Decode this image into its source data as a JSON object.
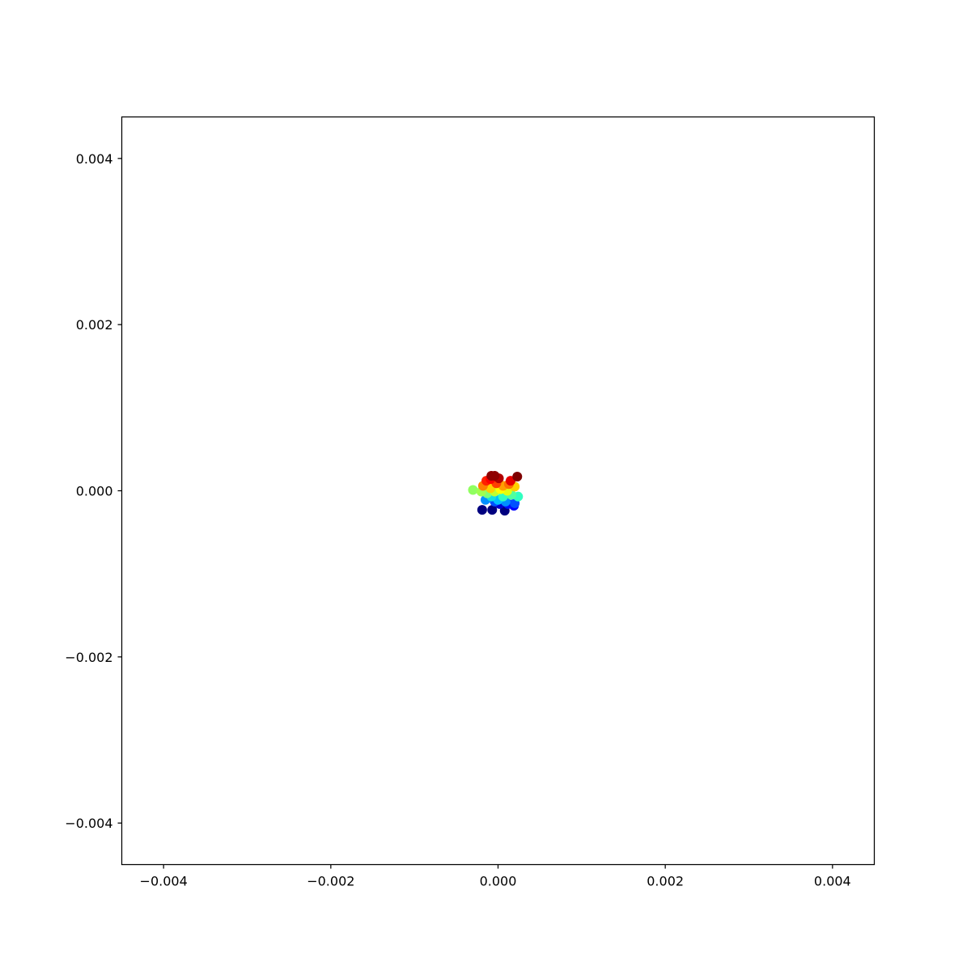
{
  "chart_data": {
    "type": "scatter",
    "title": "",
    "xlabel": "",
    "ylabel": "",
    "xlim": [
      -0.0045,
      0.0045
    ],
    "ylim": [
      -0.0045,
      0.0045
    ],
    "grid": false,
    "legend": "none",
    "colormap": "jet",
    "x_ticks": [
      {
        "value": -0.004,
        "label": "−0.004"
      },
      {
        "value": -0.002,
        "label": "−0.002"
      },
      {
        "value": 0.0,
        "label": "0.000"
      },
      {
        "value": 0.002,
        "label": "0.002"
      },
      {
        "value": 0.004,
        "label": "0.004"
      }
    ],
    "y_ticks": [
      {
        "value": 0.004,
        "label": "0.004"
      },
      {
        "value": 0.002,
        "label": "0.002"
      },
      {
        "value": 0.0,
        "label": "0.000"
      },
      {
        "value": -0.002,
        "label": "−0.002"
      },
      {
        "value": -0.004,
        "label": "−0.004"
      }
    ],
    "points": [
      {
        "x": -0.00019,
        "y": -0.00023,
        "color": "#00007f"
      },
      {
        "x": -7e-05,
        "y": -0.00023,
        "color": "#00007f"
      },
      {
        "x": 8e-05,
        "y": -0.00024,
        "color": "#00007f"
      },
      {
        "x": 2e-05,
        "y": -0.00016,
        "color": "#0000d0"
      },
      {
        "x": 0.00019,
        "y": -0.00018,
        "color": "#0000ff"
      },
      {
        "x": 0.00012,
        "y": -0.00016,
        "color": "#0010ff"
      },
      {
        "x": -4e-05,
        "y": -0.00013,
        "color": "#0050ff"
      },
      {
        "x": 0.0002,
        "y": -0.00015,
        "color": "#0050ff"
      },
      {
        "x": -0.00015,
        "y": -0.00011,
        "color": "#0090ff"
      },
      {
        "x": 9e-05,
        "y": -0.00013,
        "color": "#0090ff"
      },
      {
        "x": 0.0,
        "y": -0.00011,
        "color": "#00c0ff"
      },
      {
        "x": -8e-05,
        "y": -7e-05,
        "color": "#10e0e0"
      },
      {
        "x": 6e-05,
        "y": -7e-05,
        "color": "#30ffc0"
      },
      {
        "x": 0.00024,
        "y": -7e-05,
        "color": "#30ffc0"
      },
      {
        "x": 0.00016,
        "y": -5e-05,
        "color": "#50ffa0"
      },
      {
        "x": -0.00013,
        "y": -3e-05,
        "color": "#7aff7a"
      },
      {
        "x": -0.0003,
        "y": 1e-05,
        "color": "#90ff60"
      },
      {
        "x": -0.0002,
        "y": -1e-05,
        "color": "#a0ff50"
      },
      {
        "x": -4e-05,
        "y": -1e-05,
        "color": "#c0ff30"
      },
      {
        "x": 0.00011,
        "y": 0.0,
        "color": "#e0ff10"
      },
      {
        "x": 3e-05,
        "y": 2e-05,
        "color": "#ffff00"
      },
      {
        "x": -9e-05,
        "y": 3e-05,
        "color": "#ffd000"
      },
      {
        "x": 0.0002,
        "y": 5e-05,
        "color": "#ffd000"
      },
      {
        "x": 6e-05,
        "y": 6e-05,
        "color": "#ffa000"
      },
      {
        "x": -0.00018,
        "y": 6e-05,
        "color": "#ff8000"
      },
      {
        "x": 0.00013,
        "y": 8e-05,
        "color": "#ff7000"
      },
      {
        "x": -2e-05,
        "y": 9e-05,
        "color": "#ff4000"
      },
      {
        "x": -0.00014,
        "y": 0.00012,
        "color": "#ff2000"
      },
      {
        "x": 0.00015,
        "y": 0.00012,
        "color": "#e50000"
      },
      {
        "x": -9e-05,
        "y": 0.00014,
        "color": "#ff0000"
      },
      {
        "x": 1e-05,
        "y": 0.00015,
        "color": "#b20000"
      },
      {
        "x": -8e-05,
        "y": 0.00018,
        "color": "#8f0000"
      },
      {
        "x": -4e-05,
        "y": 0.00018,
        "color": "#8f0000"
      },
      {
        "x": 0.00023,
        "y": 0.00017,
        "color": "#7f0000"
      }
    ]
  }
}
